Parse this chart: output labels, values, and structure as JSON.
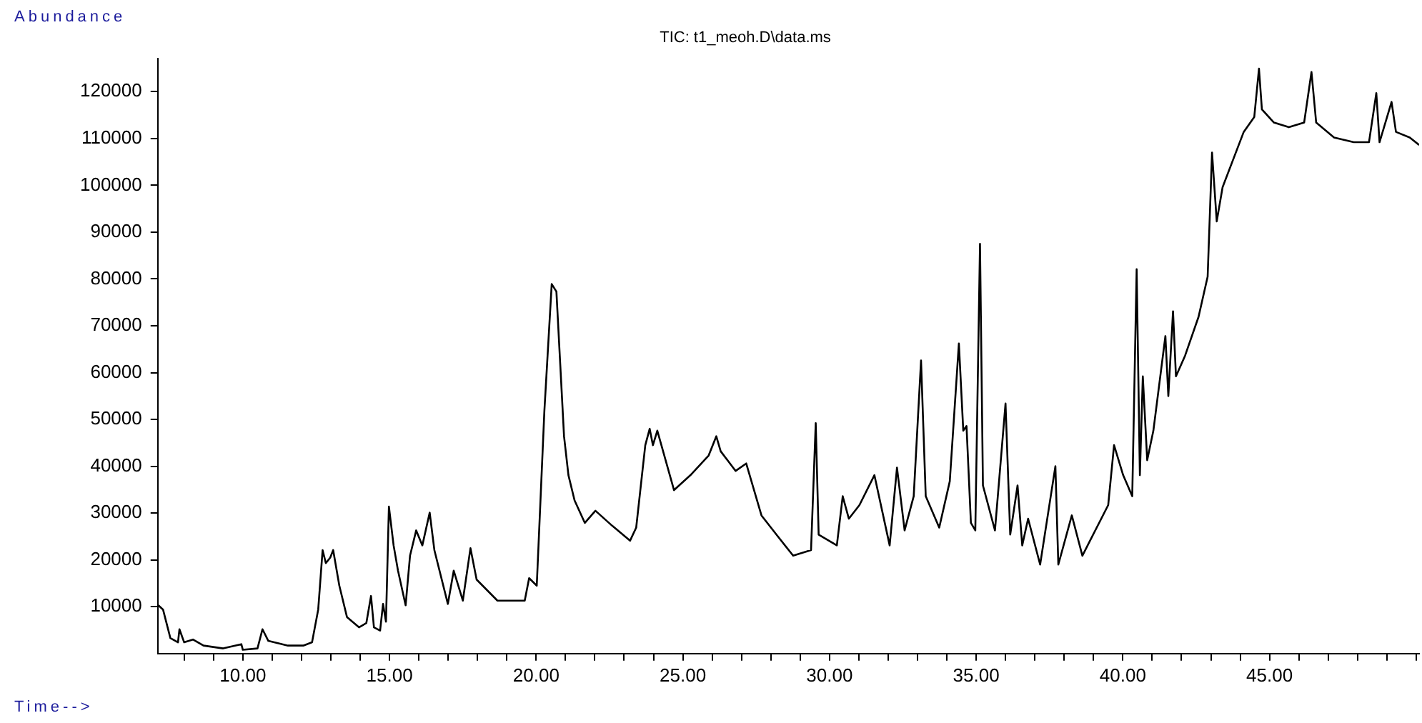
{
  "chart_data": {
    "type": "line",
    "title": "TIC: t1_meoh.D\\data.ms",
    "xlabel": "Time-->",
    "ylabel": "Abundance",
    "xlim": [
      7.1,
      50.1
    ],
    "ylim": [
      0,
      127000
    ],
    "xticks": [
      {
        "value": 8,
        "label": null
      },
      {
        "value": 9,
        "label": null
      },
      {
        "value": 10,
        "label": "10.00"
      },
      {
        "value": 11,
        "label": null
      },
      {
        "value": 12,
        "label": null
      },
      {
        "value": 13,
        "label": null
      },
      {
        "value": 14,
        "label": null
      },
      {
        "value": 15,
        "label": "15.00"
      },
      {
        "value": 16,
        "label": null
      },
      {
        "value": 17,
        "label": null
      },
      {
        "value": 18,
        "label": null
      },
      {
        "value": 19,
        "label": null
      },
      {
        "value": 20,
        "label": "20.00"
      },
      {
        "value": 21,
        "label": null
      },
      {
        "value": 22,
        "label": null
      },
      {
        "value": 23,
        "label": null
      },
      {
        "value": 24,
        "label": null
      },
      {
        "value": 25,
        "label": "25.00"
      },
      {
        "value": 26,
        "label": null
      },
      {
        "value": 27,
        "label": null
      },
      {
        "value": 28,
        "label": null
      },
      {
        "value": 29,
        "label": null
      },
      {
        "value": 30,
        "label": "30.00"
      },
      {
        "value": 31,
        "label": null
      },
      {
        "value": 32,
        "label": null
      },
      {
        "value": 33,
        "label": null
      },
      {
        "value": 34,
        "label": null
      },
      {
        "value": 35,
        "label": "35.00"
      },
      {
        "value": 36,
        "label": null
      },
      {
        "value": 37,
        "label": null
      },
      {
        "value": 38,
        "label": null
      },
      {
        "value": 39,
        "label": null
      },
      {
        "value": 40,
        "label": "40.00"
      },
      {
        "value": 41,
        "label": null
      },
      {
        "value": 42,
        "label": null
      },
      {
        "value": 43,
        "label": null
      },
      {
        "value": 44,
        "label": null
      },
      {
        "value": 45,
        "label": "45.00"
      },
      {
        "value": 46,
        "label": null
      },
      {
        "value": 47,
        "label": null
      },
      {
        "value": 48,
        "label": null
      },
      {
        "value": 49,
        "label": null
      },
      {
        "value": 50,
        "label": null
      }
    ],
    "yticks": [
      10000,
      20000,
      30000,
      40000,
      50000,
      60000,
      70000,
      80000,
      90000,
      100000,
      110000,
      120000
    ],
    "grid": false,
    "legend": false,
    "marker": "none",
    "line_style": "solid",
    "series": [
      {
        "color": "#000000",
        "x": [
          7.12,
          7.28,
          7.53,
          7.79,
          7.84,
          8.0,
          8.3,
          8.66,
          9.33,
          9.95,
          10.0,
          10.5,
          10.67,
          10.87,
          11.54,
          12.06,
          12.36,
          12.57,
          12.72,
          12.83,
          12.98,
          13.08,
          13.29,
          13.55,
          13.96,
          14.21,
          14.37,
          14.47,
          14.68,
          14.78,
          14.88,
          14.98,
          15.14,
          15.29,
          15.55,
          15.7,
          15.91,
          16.12,
          16.37,
          16.53,
          16.99,
          17.19,
          17.5,
          17.76,
          17.97,
          18.68,
          19.61,
          19.76,
          20.02,
          20.28,
          20.53,
          20.69,
          20.95,
          21.1,
          21.31,
          21.66,
          22.02,
          22.59,
          23.2,
          23.41,
          23.72,
          23.87,
          23.98,
          24.13,
          24.7,
          25.26,
          25.88,
          26.14,
          26.29,
          26.8,
          27.16,
          27.68,
          28.19,
          28.76,
          29.37,
          29.53,
          29.63,
          30.25,
          30.45,
          30.66,
          31.02,
          31.53,
          32.05,
          32.3,
          32.56,
          32.87,
          33.12,
          33.28,
          33.74,
          34.1,
          34.41,
          34.56,
          34.67,
          34.82,
          34.97,
          35.13,
          35.23,
          35.64,
          36.0,
          36.16,
          36.41,
          36.57,
          36.77,
          37.18,
          37.7,
          37.8,
          38.26,
          38.62,
          39.5,
          39.7,
          40.01,
          40.32,
          40.47,
          40.58,
          40.68,
          40.83,
          41.04,
          41.45,
          41.55,
          41.71,
          41.81,
          42.12,
          42.58,
          42.89,
          43.04,
          43.2,
          43.4,
          44.12,
          44.48,
          44.64,
          44.74,
          45.15,
          45.66,
          46.18,
          46.43,
          46.59,
          47.2,
          47.87,
          48.39,
          48.64,
          48.75,
          49.16,
          49.31,
          49.78,
          50.1
        ],
        "values": [
          10300,
          9400,
          3300,
          2400,
          5200,
          2400,
          3000,
          1700,
          1100,
          2000,
          800,
          1100,
          5200,
          2700,
          1700,
          1700,
          2400,
          9400,
          22100,
          19300,
          20500,
          22100,
          14500,
          7800,
          5600,
          6500,
          12300,
          5600,
          4900,
          10600,
          6800,
          31400,
          23100,
          17700,
          10300,
          20900,
          26300,
          23100,
          30100,
          22100,
          10600,
          17700,
          11300,
          22500,
          15800,
          11300,
          11300,
          16100,
          14500,
          51800,
          78900,
          77300,
          46400,
          38100,
          32700,
          27900,
          30500,
          27300,
          24100,
          26900,
          44500,
          48000,
          44500,
          47600,
          34900,
          38100,
          42300,
          46400,
          43200,
          39000,
          40600,
          29500,
          25400,
          20900,
          22100,
          49200,
          25400,
          23100,
          33600,
          28800,
          31700,
          38100,
          23100,
          39700,
          26300,
          33600,
          62600,
          33600,
          26900,
          36800,
          66200,
          47600,
          48600,
          27900,
          26300,
          87500,
          35900,
          26300,
          53400,
          25400,
          35900,
          23100,
          28800,
          19000,
          40000,
          19000,
          29500,
          20900,
          31700,
          44500,
          38100,
          33600,
          82100,
          38100,
          59200,
          41300,
          47600,
          67800,
          55000,
          73100,
          59200,
          63600,
          71900,
          80500,
          107000,
          92300,
          99600,
          111400,
          114600,
          124900,
          116200,
          113400,
          112400,
          113400,
          124200,
          113400,
          110200,
          109200,
          109200,
          119700,
          109200,
          117800,
          111400,
          110200,
          108600
        ]
      }
    ]
  }
}
